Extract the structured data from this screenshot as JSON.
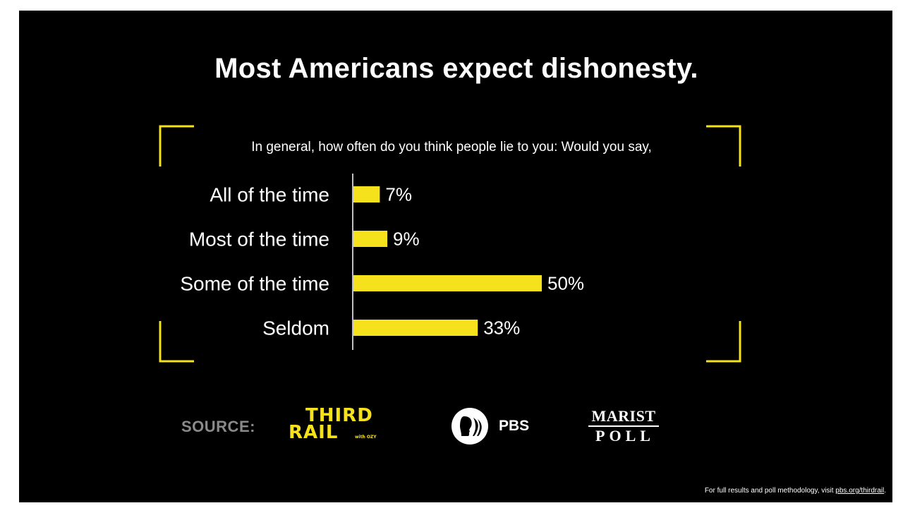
{
  "title": "Most Americans expect dishonesty.",
  "chart_data": {
    "type": "bar",
    "orientation": "horizontal",
    "title": "Most Americans expect dishonesty.",
    "subtitle": "In general, how often do you think people lie to you: Would you say,",
    "categories": [
      "All of the time",
      "Most of the time",
      "Some of the time",
      "Seldom"
    ],
    "values": [
      7,
      9,
      50,
      33
    ],
    "value_labels": [
      "7%",
      "9%",
      "50%",
      "33%"
    ],
    "unit": "%",
    "xlim": [
      0,
      50
    ],
    "grid": false,
    "bar_color": "#f5e11c"
  },
  "source": {
    "label": "SOURCE:",
    "logos": {
      "third_rail": {
        "line1": "THIRD",
        "line2": "RAIL",
        "small": "with OZY"
      },
      "pbs": {
        "text": "PBS"
      },
      "marist": {
        "line1": "MARIST",
        "line2": "POLL"
      }
    }
  },
  "footer": {
    "text": "For full results and poll methodology, visit ",
    "link": "pbs.org/thirdrail",
    "end": "."
  },
  "colors": {
    "background": "#000000",
    "accent": "#f5e11c",
    "text": "#ffffff",
    "muted": "#8a8a8a"
  }
}
